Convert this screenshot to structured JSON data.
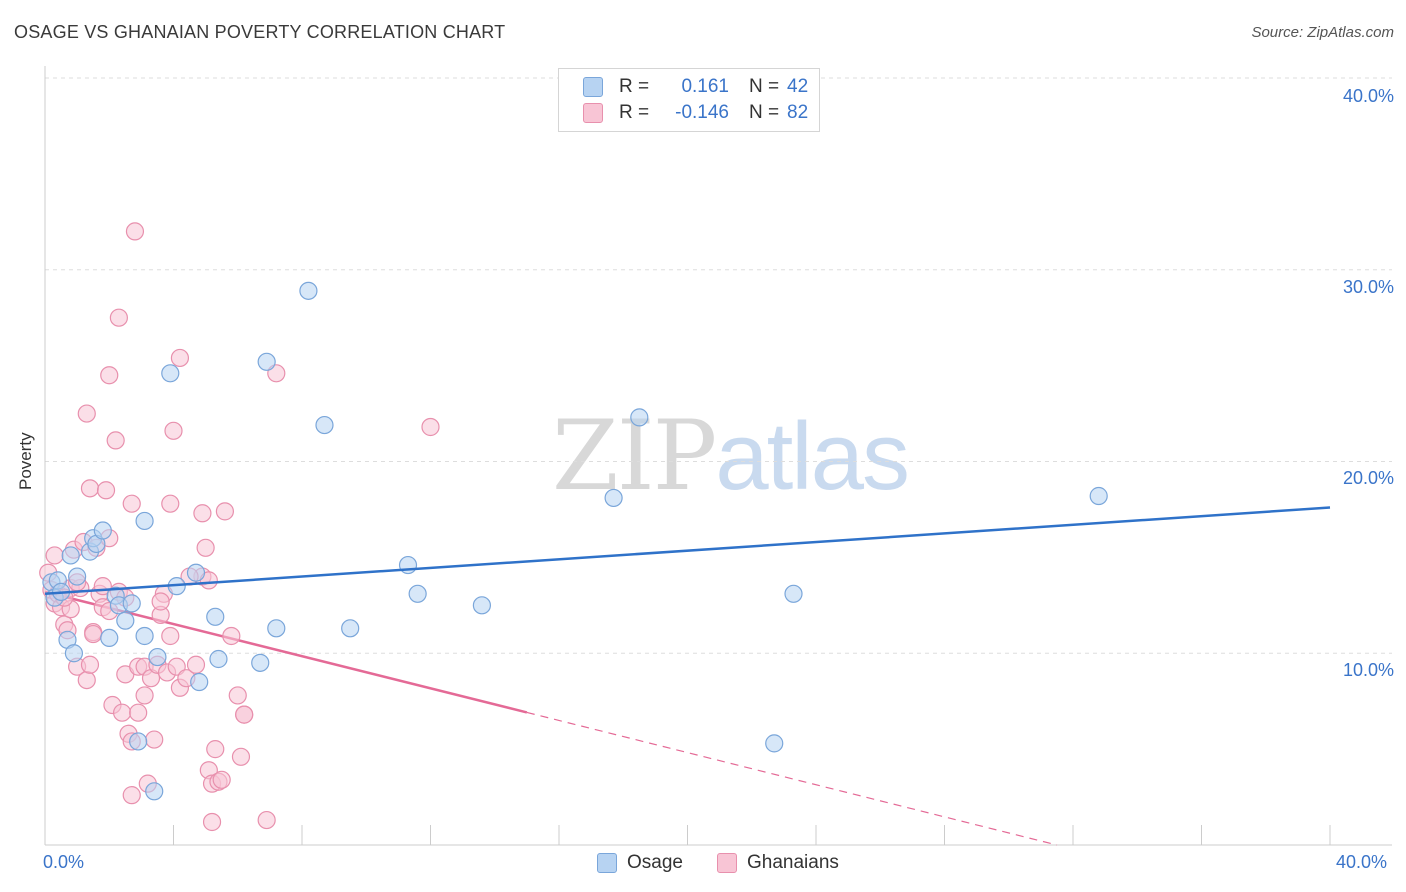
{
  "title": "OSAGE VS GHANAIAN POVERTY CORRELATION CHART",
  "source": "Source: ZipAtlas.com",
  "watermark": {
    "zip": "ZIP",
    "atlas": "atlas"
  },
  "legend": {
    "rows": [
      {
        "r_label": "R =",
        "r_value": "0.161",
        "n_label": "N =",
        "n_value": "42"
      },
      {
        "r_label": "R =",
        "r_value": "-0.146",
        "n_label": "N =",
        "n_value": "82"
      }
    ]
  },
  "bottom_legend": [
    "Osage",
    "Ghanaians"
  ],
  "colors": {
    "osage_fill": "#b7d3f2",
    "osage_stroke": "#7aa6da",
    "osage_line": "#2f72c9",
    "ghana_fill": "#f8c5d5",
    "ghana_stroke": "#e890ad",
    "ghana_line": "#e46a96",
    "tick_text": "#3a74c9",
    "grid": "#dddddd"
  },
  "chart_data": {
    "type": "scatter",
    "title": "OSAGE VS GHANAIAN POVERTY CORRELATION CHART",
    "xlabel": "",
    "ylabel": "Poverty",
    "xlim": [
      0,
      40
    ],
    "ylim": [
      0,
      40
    ],
    "x_tick_labels": [
      "0.0%",
      "40.0%"
    ],
    "y_tick_labels": [
      "10.0%",
      "20.0%",
      "30.0%",
      "40.0%"
    ],
    "y_ticks": [
      10,
      20,
      30,
      40
    ],
    "x_minor_ticks": [
      0,
      4,
      8,
      12,
      16,
      20,
      24,
      28,
      32,
      36,
      40
    ],
    "series": [
      {
        "name": "Osage",
        "trend": {
          "x0": 0,
          "y0": 13.1,
          "x1": 40,
          "y1": 17.6,
          "dashed_from": null
        },
        "points": [
          [
            0.2,
            13.7
          ],
          [
            0.3,
            12.9
          ],
          [
            0.4,
            13.8
          ],
          [
            0.5,
            13.2
          ],
          [
            0.7,
            10.7
          ],
          [
            0.8,
            15.1
          ],
          [
            0.9,
            10.0
          ],
          [
            1.0,
            14.0
          ],
          [
            1.4,
            15.3
          ],
          [
            1.5,
            16.0
          ],
          [
            1.6,
            15.7
          ],
          [
            1.8,
            16.4
          ],
          [
            2.0,
            10.8
          ],
          [
            2.2,
            13.0
          ],
          [
            2.3,
            12.5
          ],
          [
            2.5,
            11.7
          ],
          [
            2.7,
            12.6
          ],
          [
            2.9,
            5.4
          ],
          [
            3.1,
            10.9
          ],
          [
            3.1,
            16.9
          ],
          [
            3.4,
            2.8
          ],
          [
            3.5,
            9.8
          ],
          [
            3.9,
            24.6
          ],
          [
            4.1,
            13.5
          ],
          [
            4.7,
            14.2
          ],
          [
            4.8,
            8.5
          ],
          [
            5.3,
            11.9
          ],
          [
            5.4,
            9.7
          ],
          [
            6.7,
            9.5
          ],
          [
            6.9,
            25.2
          ],
          [
            7.2,
            11.3
          ],
          [
            8.2,
            28.9
          ],
          [
            8.7,
            21.9
          ],
          [
            9.5,
            11.3
          ],
          [
            11.3,
            14.6
          ],
          [
            11.6,
            13.1
          ],
          [
            13.6,
            12.5
          ],
          [
            17.7,
            18.1
          ],
          [
            18.5,
            22.3
          ],
          [
            22.7,
            5.3
          ],
          [
            23.3,
            13.1
          ],
          [
            32.8,
            18.2
          ]
        ]
      },
      {
        "name": "Ghanaians",
        "trend": {
          "x0": 0,
          "y0": 13.2,
          "x1": 31.5,
          "y1": 0,
          "dashed_from": 15.0
        },
        "points": [
          [
            0.1,
            14.2
          ],
          [
            0.2,
            13.3
          ],
          [
            0.3,
            12.6
          ],
          [
            0.3,
            15.1
          ],
          [
            0.4,
            13.1
          ],
          [
            0.5,
            12.4
          ],
          [
            0.6,
            11.5
          ],
          [
            0.7,
            11.2
          ],
          [
            0.8,
            12.3
          ],
          [
            0.8,
            13.4
          ],
          [
            0.9,
            15.4
          ],
          [
            1.0,
            9.3
          ],
          [
            1.1,
            13.4
          ],
          [
            1.2,
            15.8
          ],
          [
            1.3,
            8.6
          ],
          [
            1.3,
            22.5
          ],
          [
            1.4,
            18.6
          ],
          [
            1.4,
            9.4
          ],
          [
            1.5,
            11.1
          ],
          [
            1.6,
            15.5
          ],
          [
            1.7,
            13.1
          ],
          [
            1.8,
            12.4
          ],
          [
            1.8,
            13.5
          ],
          [
            1.9,
            18.5
          ],
          [
            2.0,
            24.5
          ],
          [
            2.0,
            16.0
          ],
          [
            2.1,
            7.3
          ],
          [
            2.2,
            21.1
          ],
          [
            2.3,
            27.5
          ],
          [
            2.3,
            13.2
          ],
          [
            2.4,
            6.9
          ],
          [
            2.5,
            12.9
          ],
          [
            2.5,
            8.9
          ],
          [
            2.6,
            5.8
          ],
          [
            2.7,
            17.8
          ],
          [
            2.7,
            5.4
          ],
          [
            2.7,
            2.6
          ],
          [
            2.8,
            32.0
          ],
          [
            2.9,
            9.3
          ],
          [
            2.9,
            6.9
          ],
          [
            3.1,
            7.8
          ],
          [
            3.1,
            9.3
          ],
          [
            3.2,
            3.2
          ],
          [
            3.3,
            8.7
          ],
          [
            3.4,
            5.5
          ],
          [
            3.5,
            9.4
          ],
          [
            3.6,
            12.0
          ],
          [
            3.7,
            13.1
          ],
          [
            3.8,
            9.0
          ],
          [
            3.9,
            10.9
          ],
          [
            3.9,
            17.8
          ],
          [
            4.0,
            21.6
          ],
          [
            4.1,
            9.3
          ],
          [
            4.2,
            8.2
          ],
          [
            4.2,
            25.4
          ],
          [
            4.4,
            8.7
          ],
          [
            4.7,
            9.4
          ],
          [
            4.9,
            14.0
          ],
          [
            4.9,
            17.3
          ],
          [
            5.0,
            15.5
          ],
          [
            5.1,
            13.8
          ],
          [
            5.1,
            3.9
          ],
          [
            5.2,
            3.2
          ],
          [
            5.3,
            5.0
          ],
          [
            5.4,
            3.3
          ],
          [
            5.5,
            3.4
          ],
          [
            5.6,
            17.4
          ],
          [
            5.8,
            10.9
          ],
          [
            6.0,
            7.8
          ],
          [
            6.1,
            4.6
          ],
          [
            6.2,
            6.8
          ],
          [
            6.2,
            6.8
          ],
          [
            6.9,
            1.3
          ],
          [
            7.2,
            24.6
          ],
          [
            12.0,
            21.8
          ],
          [
            1.5,
            11.0
          ],
          [
            2.0,
            12.2
          ],
          [
            0.6,
            12.9
          ],
          [
            1.0,
            13.7
          ],
          [
            4.5,
            14.0
          ],
          [
            3.6,
            12.7
          ],
          [
            5.2,
            1.2
          ]
        ]
      }
    ]
  }
}
